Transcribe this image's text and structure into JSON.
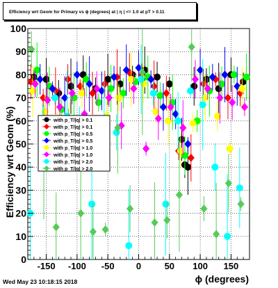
{
  "footer": {
    "timestamp": "Wed May 23 10:18:15 2018"
  },
  "chart_data": {
    "type": "scatter",
    "title": "Efficiency wrt Geom for Primary vs ϕ (degrees) at | η | <= 1.0 at pT > 0.11",
    "xlabel": "ϕ (degrees)",
    "ylabel": "Efficiency wrt Geom (%)",
    "xlim": [
      -180,
      180
    ],
    "ylim": [
      0,
      100
    ],
    "x_ticks": [
      -150,
      -100,
      -50,
      0,
      50,
      100,
      150
    ],
    "y_ticks": [
      0,
      10,
      20,
      30,
      40,
      50,
      60,
      70,
      80,
      90,
      100
    ],
    "grid": true,
    "legend_position": "center-left",
    "series": [
      {
        "name": "p_T/|q| > 0.1",
        "color": "#000000",
        "x": [
          -170,
          -150,
          -130,
          -110,
          -90,
          -70,
          -50,
          -30,
          -10,
          10,
          30,
          50,
          70,
          75,
          80,
          90,
          110,
          130,
          150,
          170
        ],
        "y": [
          79,
          78,
          72,
          75,
          80,
          74,
          78,
          76,
          80,
          82,
          79,
          76,
          52,
          41,
          40,
          75,
          78,
          74,
          80,
          77
        ]
      },
      {
        "name": "p_T/|q| > 0.1",
        "color": "#ff0000",
        "x": [
          -175,
          -155,
          -135,
          -115,
          -95,
          -75,
          -55,
          -35,
          -15,
          5,
          25,
          45,
          65,
          85,
          105,
          125,
          145,
          165
        ],
        "y": [
          77,
          70,
          73,
          78,
          75,
          72,
          76,
          79,
          81,
          80,
          75,
          72,
          47,
          44,
          76,
          78,
          70,
          72
        ]
      },
      {
        "name": "p_T/|q| > 0.5",
        "color": "#00ff00",
        "x": [
          -165,
          -145,
          -125,
          -105,
          -85,
          -65,
          -45,
          -25,
          -5,
          15,
          35,
          55,
          75,
          95,
          115,
          135,
          155,
          175
        ],
        "y": [
          82,
          75,
          65,
          70,
          78,
          68,
          74,
          72,
          77,
          79,
          71,
          68,
          45,
          60,
          73,
          76,
          80,
          79
        ]
      },
      {
        "name": "p_T/|q| > 0.5",
        "color": "#0000ff",
        "x": [
          -160,
          -140,
          -120,
          -100,
          -80,
          -60,
          -40,
          -20,
          0,
          20,
          40,
          60,
          80,
          100,
          120,
          140,
          160
        ],
        "y": [
          78,
          74,
          70,
          80,
          76,
          73,
          79,
          82,
          83,
          78,
          66,
          63,
          50,
          82,
          79,
          80,
          75
        ]
      },
      {
        "name": "p_T/|q| > 1.0",
        "color": "#ffff00",
        "x": [
          -172,
          -152,
          -132,
          -112,
          -92,
          -72,
          -52,
          -32,
          -12,
          8,
          28,
          48,
          68,
          88,
          108,
          128,
          148,
          168
        ],
        "y": [
          73,
          64,
          60,
          58,
          72,
          57,
          62,
          70,
          78,
          76,
          64,
          60,
          47,
          59,
          70,
          62,
          48,
          74
        ]
      },
      {
        "name": "p_T/|q| > 1.0",
        "color": "#ff00ff",
        "x": [
          -168,
          -148,
          -128,
          -108,
          -88,
          -68,
          -48,
          -28,
          -8,
          12,
          32,
          52,
          72,
          92,
          112,
          132,
          152,
          172
        ],
        "y": [
          76,
          69,
          66,
          72,
          63,
          74,
          70,
          58,
          74,
          48,
          61,
          66,
          57,
          78,
          74,
          70,
          68,
          66
        ]
      },
      {
        "name": "p_T/|q| > 2.0",
        "color": "#00ffff",
        "x": [
          -176,
          -156,
          -136,
          -116,
          -96,
          -76,
          -56,
          -36,
          -16,
          4,
          24,
          44,
          64,
          84,
          104,
          124,
          144,
          164
        ],
        "y": [
          20,
          55,
          70,
          62,
          56,
          24,
          60,
          55,
          6,
          78,
          72,
          24,
          60,
          73,
          67,
          40,
          10,
          31
        ]
      },
      {
        "name": "p_T/|q| > 2.0",
        "color": "#55cc55",
        "x": [
          -174,
          -154,
          -134,
          -114,
          -94,
          -74,
          -54,
          -34,
          -14,
          6,
          26,
          46,
          66,
          86,
          106,
          126,
          146,
          166
        ],
        "y": [
          91,
          42,
          14,
          60,
          20,
          12,
          13,
          57,
          22,
          81,
          16,
          17,
          28,
          92,
          22,
          11,
          33,
          24
        ]
      }
    ]
  }
}
